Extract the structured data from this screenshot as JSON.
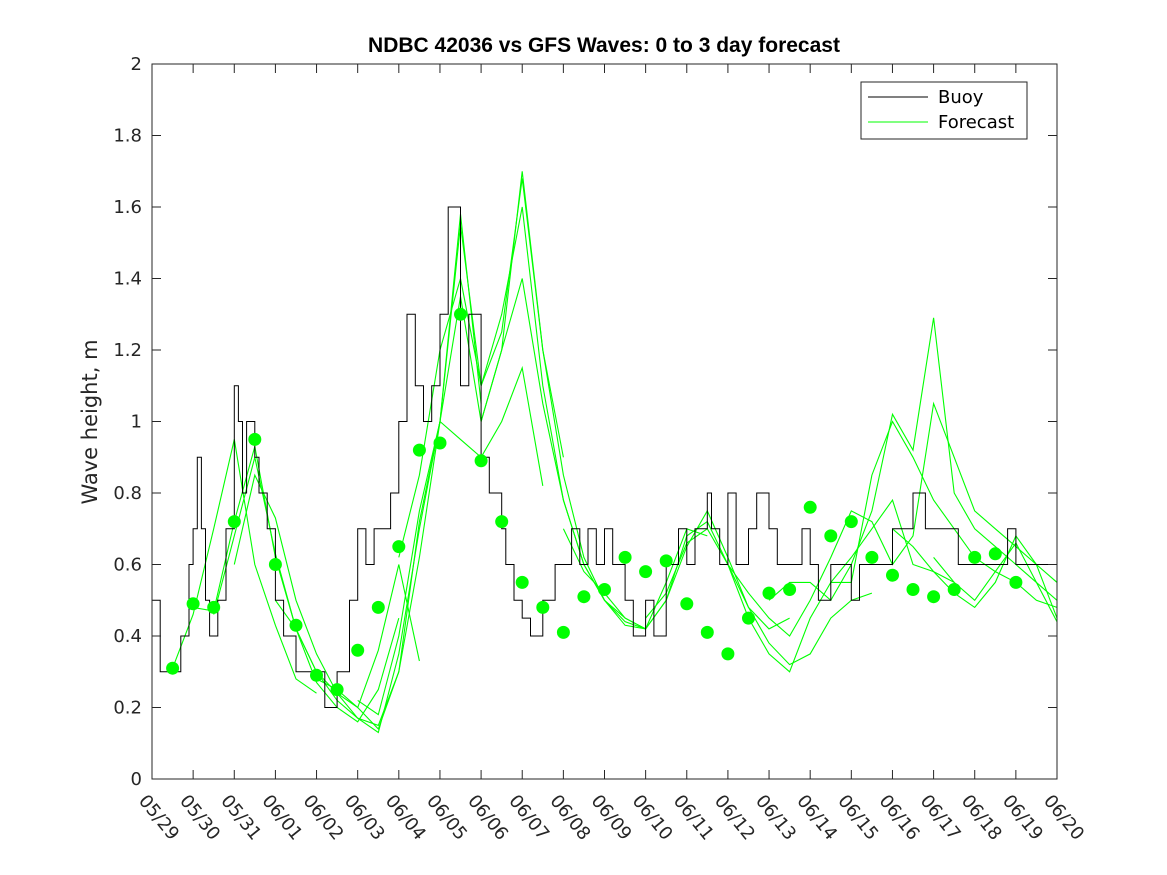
{
  "chart_data": {
    "type": "line",
    "title": "NDBC 42036 vs GFS Waves: 0 to 3 day forecast",
    "xlabel": "",
    "ylabel": "Wave height, m",
    "xlim": [
      "05/29",
      "06/20"
    ],
    "ylim": [
      0,
      2
    ],
    "x_tick_labels": [
      "05/29",
      "05/30",
      "05/31",
      "06/01",
      "06/02",
      "06/03",
      "06/04",
      "06/05",
      "06/06",
      "06/07",
      "06/08",
      "06/09",
      "06/10",
      "06/11",
      "06/12",
      "06/13",
      "06/14",
      "06/15",
      "06/16",
      "06/17",
      "06/18",
      "06/19",
      "06/20"
    ],
    "y_tick_labels": [
      "0",
      "0.2",
      "0.4",
      "0.6",
      "0.8",
      "1",
      "1.2",
      "1.4",
      "1.6",
      "1.8",
      "2"
    ],
    "y_ticks": [
      0,
      0.2,
      0.4,
      0.6,
      0.8,
      1,
      1.2,
      1.4,
      1.6,
      1.8,
      2
    ],
    "legend": {
      "position": "top-right",
      "entries": [
        "Buoy",
        "Forecast"
      ]
    },
    "colors": {
      "buoy": "#000000",
      "forecast": "#00ff00",
      "marker": "#00ff00",
      "axes": "#262626"
    },
    "grid": false,
    "series": [
      {
        "name": "Buoy",
        "day_offset": [
          0,
          0.2,
          0.3,
          0.5,
          0.7,
          0.9,
          1.0,
          1.1,
          1.2,
          1.3,
          1.4,
          1.6,
          1.8,
          2.0,
          2.1,
          2.2,
          2.3,
          2.5,
          2.6,
          2.8,
          3.0,
          3.2,
          3.5,
          3.7,
          4.0,
          4.2,
          4.5,
          4.8,
          5.0,
          5.2,
          5.4,
          5.6,
          5.8,
          6.0,
          6.2,
          6.4,
          6.6,
          6.8,
          7.0,
          7.2,
          7.5,
          7.7,
          8.0,
          8.2,
          8.4,
          8.5,
          8.6,
          8.8,
          9.0,
          9.2,
          9.5,
          9.8,
          10.0,
          10.2,
          10.4,
          10.5,
          10.6,
          10.8,
          11.0,
          11.2,
          11.5,
          11.7,
          12.0,
          12.2,
          12.5,
          12.8,
          13.0,
          13.2,
          13.4,
          13.5,
          13.6,
          13.8,
          14.0,
          14.2,
          14.5,
          14.7,
          15.0,
          15.2,
          15.5,
          15.8,
          16.0,
          16.2,
          16.5,
          16.7,
          17.0,
          17.2,
          17.5,
          17.8,
          18.0,
          18.2,
          18.5,
          18.8,
          19.0,
          19.3,
          19.6,
          20.0,
          20.2,
          20.4,
          20.6,
          20.8,
          21.0,
          21.2,
          21.5,
          21.7,
          21.9
        ],
        "values": [
          0.5,
          0.3,
          0.3,
          0.3,
          0.4,
          0.6,
          0.7,
          0.9,
          0.7,
          0.5,
          0.4,
          0.5,
          0.7,
          1.1,
          1.0,
          0.8,
          1.0,
          0.9,
          0.8,
          0.7,
          0.5,
          0.4,
          0.3,
          0.3,
          0.3,
          0.2,
          0.3,
          0.5,
          0.7,
          0.6,
          0.7,
          0.7,
          0.8,
          1.0,
          1.3,
          1.1,
          1.0,
          1.1,
          1.3,
          1.6,
          1.1,
          1.3,
          0.9,
          0.8,
          0.8,
          0.7,
          0.6,
          0.5,
          0.45,
          0.4,
          0.5,
          0.6,
          0.6,
          0.7,
          0.6,
          0.6,
          0.7,
          0.6,
          0.7,
          0.6,
          0.5,
          0.4,
          0.5,
          0.4,
          0.6,
          0.7,
          0.6,
          0.7,
          0.7,
          0.8,
          0.7,
          0.6,
          0.8,
          0.6,
          0.7,
          0.8,
          0.7,
          0.6,
          0.6,
          0.7,
          0.6,
          0.5,
          0.6,
          0.6,
          0.5,
          0.6,
          0.6,
          0.6,
          0.7,
          0.7,
          0.8,
          0.7,
          0.7,
          0.7,
          0.6,
          0.6,
          0.6,
          0.6,
          0.6,
          0.7,
          0.6,
          0.6,
          0.6,
          0.6,
          0.6
        ]
      },
      {
        "name": "Forecast",
        "runs": [
          {
            "day_offset": [
              0.5,
              1.0,
              1.5,
              2.0,
              2.5,
              3.0,
              3.5,
              4.0
            ],
            "values": [
              0.31,
              0.46,
              0.7,
              0.95,
              0.6,
              0.43,
              0.28,
              0.24
            ]
          },
          {
            "day_offset": [
              1.0,
              1.5,
              2.0,
              2.5,
              3.0,
              3.5,
              4.0,
              4.5,
              5.0,
              5.5,
              6.0,
              6.5
            ],
            "values": [
              0.48,
              0.47,
              0.72,
              0.93,
              0.62,
              0.42,
              0.3,
              0.24,
              0.2,
              0.36,
              0.6,
              0.33
            ]
          },
          {
            "day_offset": [
              1.5,
              2.0,
              2.5,
              3.0,
              3.5,
              4.0,
              4.5,
              5.0,
              5.5,
              6.0
            ],
            "values": [
              0.46,
              0.68,
              0.9,
              0.63,
              0.42,
              0.27,
              0.2,
              0.16,
              0.25,
              0.45
            ]
          },
          {
            "day_offset": [
              2.0,
              2.5,
              3.0,
              3.5,
              4.0,
              4.5,
              5.0,
              5.5,
              6.0,
              6.5,
              7.0,
              7.5,
              8.0,
              8.5,
              9.0,
              9.5
            ],
            "values": [
              0.6,
              0.85,
              0.73,
              0.5,
              0.35,
              0.24,
              0.17,
              0.15,
              0.3,
              0.72,
              1.0,
              0.95,
              0.9,
              1.0,
              1.15,
              0.82
            ]
          },
          {
            "day_offset": [
              3.0,
              3.5,
              4.0,
              4.5,
              5.0,
              5.5,
              6.0,
              6.5,
              7.0,
              7.5,
              8.0
            ],
            "values": [
              0.5,
              0.42,
              0.3,
              0.22,
              0.17,
              0.13,
              0.35,
              0.7,
              1.0,
              1.58,
              1.05
            ]
          },
          {
            "day_offset": [
              4.0,
              4.5,
              5.0,
              5.5,
              6.0,
              6.5,
              7.0,
              7.5,
              8.0,
              8.5,
              9.0,
              9.5,
              10.0
            ],
            "values": [
              0.28,
              0.25,
              0.2,
              0.14,
              0.3,
              0.62,
              1.0,
              1.55,
              1.1,
              1.25,
              1.68,
              1.2,
              0.9
            ]
          },
          {
            "day_offset": [
              5.0,
              5.5,
              6.0,
              6.5,
              7.0,
              7.5,
              8.0,
              8.5,
              9.0,
              9.5,
              10.0,
              10.5,
              11.0,
              11.5,
              12.0
            ],
            "values": [
              0.22,
              0.18,
              0.4,
              0.75,
              1.0,
              1.35,
              1.0,
              1.2,
              1.7,
              1.2,
              0.85,
              0.62,
              0.5,
              0.44,
              0.42
            ]
          },
          {
            "day_offset": [
              6.0,
              6.5,
              7.0,
              7.5,
              8.0,
              8.5,
              9.0,
              9.5,
              10.0,
              10.5,
              11.0,
              11.5,
              12.0,
              12.5,
              13.0,
              13.5
            ],
            "values": [
              0.62,
              0.85,
              1.2,
              1.4,
              1.1,
              1.3,
              1.6,
              1.1,
              0.78,
              0.6,
              0.5,
              0.43,
              0.42,
              0.55,
              0.7,
              0.68
            ]
          },
          {
            "day_offset": [
              8.0,
              8.5,
              9.0,
              9.5,
              10.0,
              10.5,
              11.0,
              11.5,
              12.0,
              12.5,
              13.0,
              13.5,
              14.0,
              14.5,
              15.0,
              15.5
            ],
            "values": [
              1.0,
              1.2,
              1.4,
              1.05,
              0.78,
              0.6,
              0.5,
              0.45,
              0.42,
              0.5,
              0.68,
              0.72,
              0.6,
              0.48,
              0.42,
              0.45
            ]
          },
          {
            "day_offset": [
              10.0,
              10.5,
              11.0,
              11.5,
              12.0,
              12.5,
              13.0,
              13.5,
              14.0,
              14.5,
              15.0,
              15.5,
              16.0,
              16.5,
              17.0,
              17.5
            ],
            "values": [
              0.7,
              0.58,
              0.52,
              0.45,
              0.42,
              0.5,
              0.65,
              0.75,
              0.62,
              0.48,
              0.38,
              0.32,
              0.35,
              0.45,
              0.5,
              0.52
            ]
          },
          {
            "day_offset": [
              12.0,
              12.5,
              13.0,
              13.5,
              14.0,
              14.5,
              15.0,
              15.5,
              16.0,
              16.5,
              17.0,
              17.5,
              18.0,
              18.5,
              19.0,
              19.5
            ],
            "values": [
              0.45,
              0.52,
              0.66,
              0.7,
              0.6,
              0.45,
              0.35,
              0.3,
              0.45,
              0.55,
              0.62,
              0.7,
              0.78,
              0.6,
              0.58,
              0.55
            ]
          },
          {
            "day_offset": [
              14.0,
              14.5,
              15.0,
              15.5,
              16.0,
              16.5,
              17.0,
              17.5,
              18.0,
              18.5,
              19.0,
              19.5,
              20.0,
              20.5,
              21.0,
              21.5,
              22.0
            ],
            "values": [
              0.6,
              0.52,
              0.45,
              0.4,
              0.5,
              0.62,
              0.75,
              0.72,
              0.6,
              0.68,
              1.05,
              0.9,
              0.75,
              0.7,
              0.65,
              0.6,
              0.55
            ]
          },
          {
            "day_offset": [
              15.0,
              15.5,
              16.0,
              16.5,
              17.0,
              17.5,
              18.0,
              18.5,
              19.0,
              19.5,
              20.0,
              20.5,
              21.0,
              21.5,
              22.0
            ],
            "values": [
              0.5,
              0.55,
              0.55,
              0.5,
              0.6,
              0.75,
              1.02,
              0.92,
              1.29,
              0.8,
              0.7,
              0.65,
              0.6,
              0.55,
              0.5
            ]
          },
          {
            "day_offset": [
              16.5,
              17.0,
              17.5,
              18.0,
              18.5,
              19.0,
              19.5,
              20.0,
              20.5,
              21.0,
              21.5,
              22.0
            ],
            "values": [
              0.55,
              0.55,
              0.85,
              1.0,
              0.9,
              0.78,
              0.7,
              0.62,
              0.58,
              0.55,
              0.5,
              0.48
            ]
          },
          {
            "day_offset": [
              18.0,
              18.5,
              19.0,
              19.5,
              20.0,
              20.5,
              21.0,
              21.5,
              22.0
            ],
            "values": [
              0.7,
              0.65,
              0.58,
              0.52,
              0.48,
              0.55,
              0.68,
              0.6,
              0.45
            ]
          },
          {
            "day_offset": [
              19.0,
              19.5,
              20.0,
              20.5,
              21.0,
              21.5,
              22.0
            ],
            "values": [
              0.62,
              0.55,
              0.5,
              0.58,
              0.66,
              0.55,
              0.44
            ]
          }
        ]
      },
      {
        "name": "Forecast markers",
        "day_offset": [
          0.5,
          1.0,
          1.5,
          2.0,
          2.5,
          3.0,
          3.5,
          4.0,
          4.5,
          5.0,
          5.5,
          6.0,
          6.5,
          7.0,
          7.5,
          8.0,
          8.5,
          9.0,
          9.5,
          10.0,
          10.5,
          11.0,
          11.5,
          12.0,
          12.5,
          13.0,
          13.5,
          14.0,
          14.5,
          15.0,
          15.5,
          16.0,
          16.5,
          17.0,
          17.5,
          18.0,
          18.5,
          19.0,
          19.5,
          20.0,
          20.5,
          21.0
        ],
        "values": [
          0.31,
          0.49,
          0.48,
          0.72,
          0.95,
          0.6,
          0.43,
          0.29,
          0.25,
          0.36,
          0.48,
          0.65,
          0.92,
          0.94,
          1.3,
          0.89,
          0.72,
          0.55,
          0.48,
          0.41,
          0.51,
          0.53,
          0.62,
          0.58,
          0.61,
          0.49,
          0.41,
          0.35,
          0.45,
          0.52,
          0.53,
          0.76,
          0.68,
          0.72,
          0.62,
          0.57,
          0.53,
          0.51,
          0.53,
          0.62,
          0.63,
          0.55
        ]
      }
    ]
  }
}
